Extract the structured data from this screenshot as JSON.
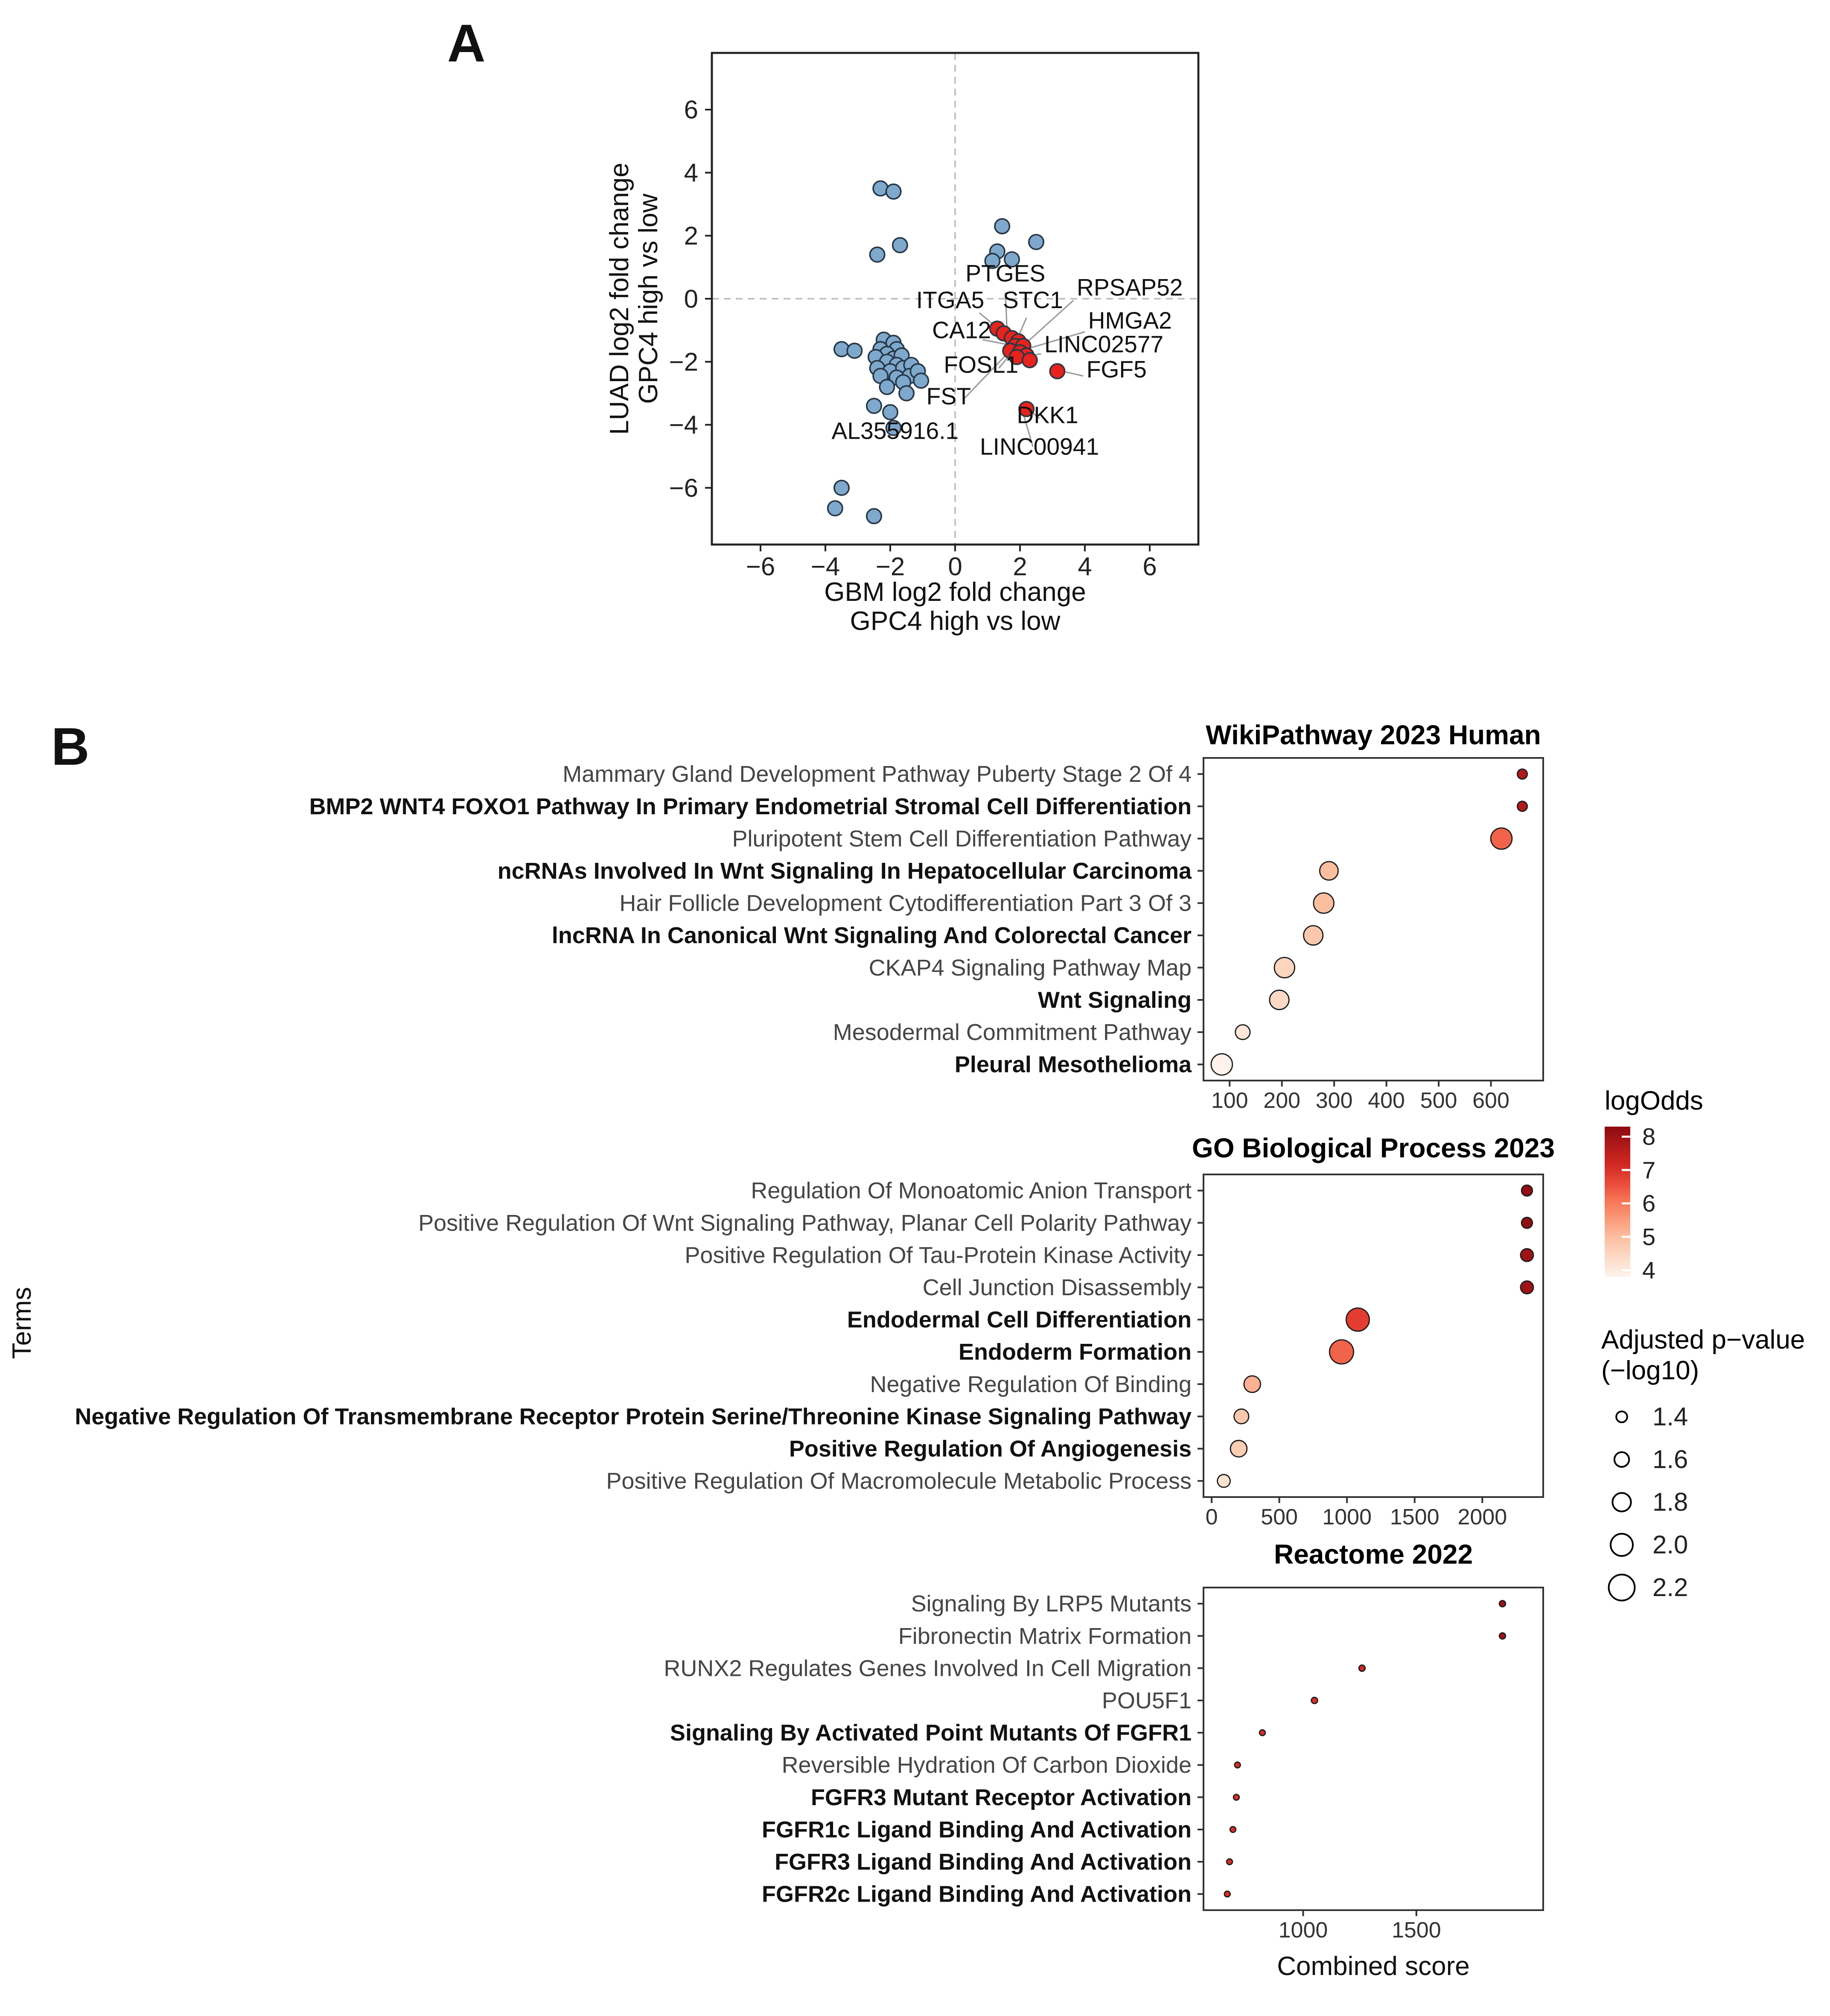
{
  "panels": {
    "a": {
      "label": "A"
    },
    "b": {
      "label": "B"
    }
  },
  "shared_ylabel": "Terms",
  "chart_data": [
    {
      "type": "scatter",
      "panel": "A",
      "xlabel_lines": [
        "GBM log2 fold change",
        "GPC4 high vs low"
      ],
      "ylabel_lines": [
        "LUAD log2 fold change",
        "GPC4 high vs low"
      ],
      "xlim": [
        -7.5,
        7.5
      ],
      "ylim": [
        -7.8,
        7.8
      ],
      "xticks": [
        -6,
        -4,
        -2,
        0,
        2,
        4,
        6
      ],
      "yticks": [
        -6,
        -4,
        -2,
        0,
        2,
        4,
        6
      ],
      "vline": 0,
      "hline": 0,
      "series": [
        {
          "name": "blue-points",
          "color": "#7FA8CD",
          "points": [
            [
              -2.3,
              3.5
            ],
            [
              -1.9,
              3.4
            ],
            [
              -2.4,
              1.4
            ],
            [
              -1.7,
              1.7
            ],
            [
              1.3,
              1.5
            ],
            [
              1.45,
              2.3
            ],
            [
              1.15,
              1.2
            ],
            [
              2.5,
              1.8
            ],
            [
              1.75,
              1.25
            ],
            [
              -3.5,
              -1.6
            ],
            [
              -3.1,
              -1.65
            ],
            [
              -2.2,
              -1.3
            ],
            [
              -1.9,
              -1.4
            ],
            [
              -2.3,
              -1.6
            ],
            [
              -1.8,
              -1.6
            ],
            [
              -2.1,
              -1.75
            ],
            [
              -2.45,
              -1.85
            ],
            [
              -1.9,
              -1.9
            ],
            [
              -1.65,
              -1.8
            ],
            [
              -2.1,
              -2.0
            ],
            [
              -1.8,
              -2.1
            ],
            [
              -2.4,
              -2.2
            ],
            [
              -2.0,
              -2.3
            ],
            [
              -1.6,
              -2.2
            ],
            [
              -1.35,
              -2.1
            ],
            [
              -2.3,
              -2.45
            ],
            [
              -1.8,
              -2.5
            ],
            [
              -1.4,
              -2.45
            ],
            [
              -1.15,
              -2.3
            ],
            [
              -1.6,
              -2.65
            ],
            [
              -2.1,
              -2.8
            ],
            [
              -1.05,
              -2.6
            ],
            [
              -1.5,
              -3.0
            ],
            [
              -2.5,
              -3.4
            ],
            [
              -2.0,
              -3.6
            ],
            [
              -1.9,
              -4.1
            ],
            [
              -3.5,
              -6.0
            ],
            [
              -3.7,
              -6.65
            ],
            [
              -2.5,
              -6.9
            ]
          ]
        },
        {
          "name": "red-points",
          "color": "#E8221C",
          "points": [
            [
              1.3,
              -0.95
            ],
            [
              1.5,
              -1.1
            ],
            [
              1.75,
              -1.25
            ],
            [
              1.95,
              -1.35
            ],
            [
              1.85,
              -1.5
            ],
            [
              2.1,
              -1.5
            ],
            [
              1.7,
              -1.65
            ],
            [
              2.0,
              -1.7
            ],
            [
              2.2,
              -1.8
            ],
            [
              1.9,
              -1.85
            ],
            [
              2.3,
              -1.95
            ],
            [
              3.15,
              -2.3
            ],
            [
              2.2,
              -3.5
            ]
          ]
        }
      ],
      "point_labels": [
        {
          "text": "PTGES",
          "x": 1.55,
          "y": 0.55,
          "anchor": "middle",
          "line": [
            1.55,
            0.2,
            1.6,
            -1.0
          ]
        },
        {
          "text": "RPSAP52",
          "x": 3.75,
          "y": 0.1,
          "anchor": "start",
          "line": [
            3.65,
            -0.05,
            2.25,
            -1.35
          ]
        },
        {
          "text": "ITGA5",
          "x": -0.15,
          "y": -0.3,
          "anchor": "middle",
          "line": [
            0.75,
            -0.45,
            1.45,
            -1.05
          ]
        },
        {
          "text": "STC1",
          "x": 2.4,
          "y": -0.3,
          "anchor": "middle",
          "line": [
            2.2,
            -0.6,
            1.95,
            -1.2
          ]
        },
        {
          "text": "HMGA2",
          "x": 4.1,
          "y": -0.95,
          "anchor": "start",
          "line": [
            4.0,
            -1.05,
            2.35,
            -1.55
          ]
        },
        {
          "text": "CA12",
          "x": 0.2,
          "y": -1.25,
          "anchor": "middle",
          "line": [
            0.85,
            -1.3,
            1.6,
            -1.45
          ]
        },
        {
          "text": "LINC02577",
          "x": 2.75,
          "y": -1.7,
          "anchor": "start",
          "line": [
            2.65,
            -1.75,
            2.25,
            -1.8
          ]
        },
        {
          "text": "FOSL1",
          "x": 0.8,
          "y": -2.35,
          "anchor": "middle",
          "line": [
            1.35,
            -2.2,
            1.75,
            -1.7
          ]
        },
        {
          "text": "FGF5",
          "x": 4.05,
          "y": -2.5,
          "anchor": "start",
          "line": [
            3.95,
            -2.45,
            3.3,
            -2.3
          ]
        },
        {
          "text": "FST",
          "x": -0.2,
          "y": -3.35,
          "anchor": "middle",
          "line": [
            0.25,
            -3.2,
            1.6,
            -1.75
          ]
        },
        {
          "text": "DKK1",
          "x": 2.85,
          "y": -3.95,
          "anchor": "middle",
          "line": [
            2.6,
            -3.8,
            2.3,
            -3.55
          ]
        },
        {
          "text": "LINC00941",
          "x": 2.6,
          "y": -4.95,
          "anchor": "middle",
          "line": [
            2.4,
            -4.7,
            2.1,
            -3.65
          ]
        },
        {
          "text": "AL355916.1",
          "x": -1.85,
          "y": -4.45,
          "anchor": "middle",
          "line": [
            -1.85,
            -4.3,
            -1.9,
            -4.15
          ]
        }
      ]
    },
    {
      "type": "dotplot",
      "title": "WikiPathway 2023 Human",
      "xlim": [
        50,
        700
      ],
      "xticks": [
        100,
        200,
        300,
        400,
        500,
        600
      ],
      "terms": [
        {
          "label": "Mammary Gland Development Pathway Puberty Stage 2 Of 4",
          "bold": false,
          "combined_score": 660,
          "neglog10_padj": 1.35,
          "log_odds": 7.7
        },
        {
          "label": "BMP2 WNT4 FOXO1 Pathway In Primary Endometrial Stromal Cell Differentiation",
          "bold": true,
          "combined_score": 660,
          "neglog10_padj": 1.35,
          "log_odds": 7.7
        },
        {
          "label": "Pluripotent Stem Cell Differentiation Pathway",
          "bold": false,
          "combined_score": 620,
          "neglog10_padj": 1.95,
          "log_odds": 6.3
        },
        {
          "label": "ncRNAs Involved In Wnt Signaling In Hepatocellular Carcinoma",
          "bold": true,
          "combined_score": 290,
          "neglog10_padj": 1.8,
          "log_odds": 5.0
        },
        {
          "label": "Hair Follicle Development Cytodifferentiation Part 3 Of 3",
          "bold": false,
          "combined_score": 280,
          "neglog10_padj": 1.9,
          "log_odds": 5.0
        },
        {
          "label": "lncRNA In Canonical Wnt Signaling And Colorectal Cancer",
          "bold": true,
          "combined_score": 260,
          "neglog10_padj": 1.85,
          "log_odds": 4.8
        },
        {
          "label": "CKAP4 Signaling Pathway Map",
          "bold": false,
          "combined_score": 205,
          "neglog10_padj": 1.9,
          "log_odds": 4.5
        },
        {
          "label": "Wnt Signaling",
          "bold": true,
          "combined_score": 195,
          "neglog10_padj": 1.85,
          "log_odds": 4.4
        },
        {
          "label": "Mesodermal Commitment Pathway",
          "bold": false,
          "combined_score": 125,
          "neglog10_padj": 1.6,
          "log_odds": 4.1
        },
        {
          "label": "Pleural Mesothelioma",
          "bold": true,
          "combined_score": 85,
          "neglog10_padj": 1.95,
          "log_odds": 3.8
        }
      ]
    },
    {
      "type": "dotplot",
      "title": "GO Biological Process 2023",
      "xlim": [
        -60,
        2450
      ],
      "xticks": [
        0,
        500,
        1000,
        1500,
        2000
      ],
      "terms": [
        {
          "label": "Regulation Of Monoatomic Anion Transport",
          "bold": false,
          "combined_score": 2330,
          "neglog10_padj": 1.4,
          "log_odds": 8.2
        },
        {
          "label": "Positive Regulation Of Wnt Signaling Pathway, Planar Cell Polarity Pathway",
          "bold": false,
          "combined_score": 2330,
          "neglog10_padj": 1.4,
          "log_odds": 8.2
        },
        {
          "label": "Positive Regulation Of Tau-Protein Kinase Activity",
          "bold": false,
          "combined_score": 2330,
          "neglog10_padj": 1.5,
          "log_odds": 8.0
        },
        {
          "label": "Cell Junction Disassembly",
          "bold": false,
          "combined_score": 2330,
          "neglog10_padj": 1.5,
          "log_odds": 8.0
        },
        {
          "label": "Endodermal Cell Differentiation",
          "bold": true,
          "combined_score": 1080,
          "neglog10_padj": 2.05,
          "log_odds": 6.8
        },
        {
          "label": "Endoderm Formation",
          "bold": true,
          "combined_score": 960,
          "neglog10_padj": 2.1,
          "log_odds": 6.3
        },
        {
          "label": "Negative Regulation Of Binding",
          "bold": false,
          "combined_score": 300,
          "neglog10_padj": 1.7,
          "log_odds": 5.2
        },
        {
          "label": "Negative Regulation Of Transmembrane Receptor Protein Serine/Threonine Kinase Signaling Pathway",
          "bold": true,
          "combined_score": 220,
          "neglog10_padj": 1.6,
          "log_odds": 4.8
        },
        {
          "label": "Positive Regulation Of Angiogenesis",
          "bold": true,
          "combined_score": 200,
          "neglog10_padj": 1.7,
          "log_odds": 4.7
        },
        {
          "label": "Positive Regulation Of Macromolecule Metabolic Process",
          "bold": false,
          "combined_score": 90,
          "neglog10_padj": 1.5,
          "log_odds": 4.2
        }
      ]
    },
    {
      "type": "dotplot",
      "title": "Reactome 2022",
      "xlabel": "Combined score",
      "xlim": [
        560,
        2060
      ],
      "xticks": [
        1000,
        1500
      ],
      "terms": [
        {
          "label": "Signaling By LRP5 Mutants",
          "bold": false,
          "combined_score": 1880,
          "neglog10_padj": 1.15,
          "log_odds": 8.0
        },
        {
          "label": "Fibronectin Matrix Formation",
          "bold": false,
          "combined_score": 1880,
          "neglog10_padj": 1.15,
          "log_odds": 8.0
        },
        {
          "label": "RUNX2 Regulates Genes Involved In Cell Migration",
          "bold": false,
          "combined_score": 1260,
          "neglog10_padj": 1.15,
          "log_odds": 7.2
        },
        {
          "label": "POU5F1",
          "bold": false,
          "combined_score": 1050,
          "neglog10_padj": 1.15,
          "log_odds": 7.0
        },
        {
          "label": "Signaling By Activated Point Mutants Of FGFR1",
          "bold": true,
          "combined_score": 820,
          "neglog10_padj": 1.1,
          "log_odds": 7.0
        },
        {
          "label": "Reversible Hydration Of Carbon Dioxide",
          "bold": false,
          "combined_score": 710,
          "neglog10_padj": 1.1,
          "log_odds": 7.0
        },
        {
          "label": "FGFR3 Mutant Receptor Activation",
          "bold": true,
          "combined_score": 705,
          "neglog10_padj": 1.1,
          "log_odds": 7.0
        },
        {
          "label": "FGFR1c Ligand Binding And Activation",
          "bold": true,
          "combined_score": 690,
          "neglog10_padj": 1.1,
          "log_odds": 7.0
        },
        {
          "label": "FGFR3 Ligand Binding And Activation",
          "bold": true,
          "combined_score": 675,
          "neglog10_padj": 1.1,
          "log_odds": 7.0
        },
        {
          "label": "FGFR2c Ligand Binding And Activation",
          "bold": true,
          "combined_score": 665,
          "neglog10_padj": 1.1,
          "log_odds": 7.0
        }
      ]
    }
  ],
  "legends": {
    "color": {
      "title": "logOdds",
      "tick_values": [
        8,
        7,
        6,
        5,
        4
      ],
      "domain": [
        3.8,
        8.3
      ],
      "colors": {
        "high": "#8C0A10",
        "low": "#FFF3EB"
      }
    },
    "size": {
      "title_lines": [
        "Adjusted p−value",
        "(−log10)"
      ],
      "values": [
        1.4,
        1.6,
        1.8,
        2.0,
        2.2
      ]
    }
  }
}
